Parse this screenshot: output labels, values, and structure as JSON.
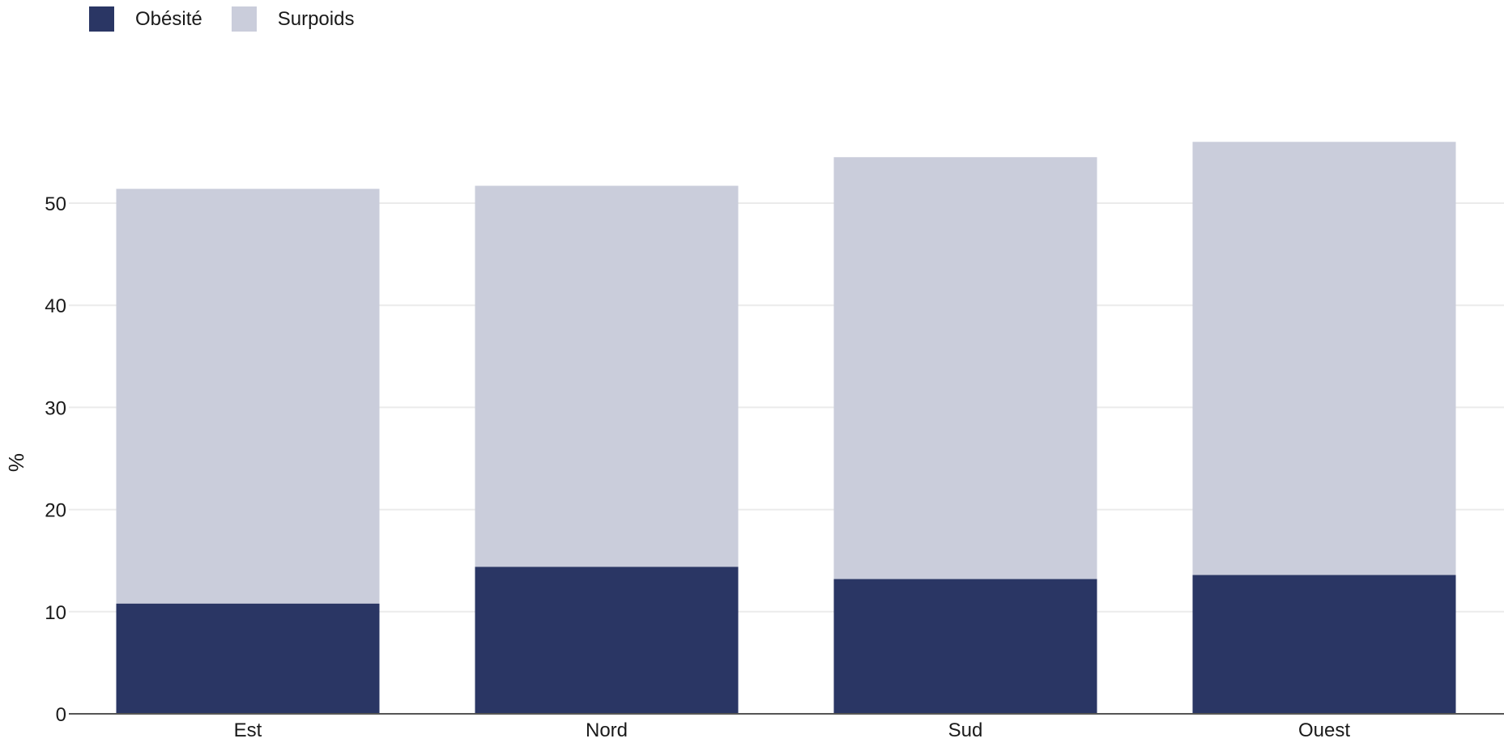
{
  "chart_data": {
    "type": "bar",
    "stacked": true,
    "categories": [
      "Est",
      "Nord",
      "Sud",
      "Ouest"
    ],
    "series": [
      {
        "name": "Obésité",
        "values": [
          10.8,
          14.4,
          13.2,
          13.6
        ],
        "color": "#2a3664"
      },
      {
        "name": "Surpoids",
        "values": [
          40.6,
          37.3,
          41.3,
          42.4
        ],
        "color": "#cacddb"
      }
    ],
    "title": "",
    "xlabel": "",
    "ylabel": "%",
    "ylim": [
      0,
      56.5
    ],
    "yticks": [
      0,
      10,
      20,
      30,
      40,
      50
    ],
    "grid": true,
    "legend_position": "top-left"
  }
}
